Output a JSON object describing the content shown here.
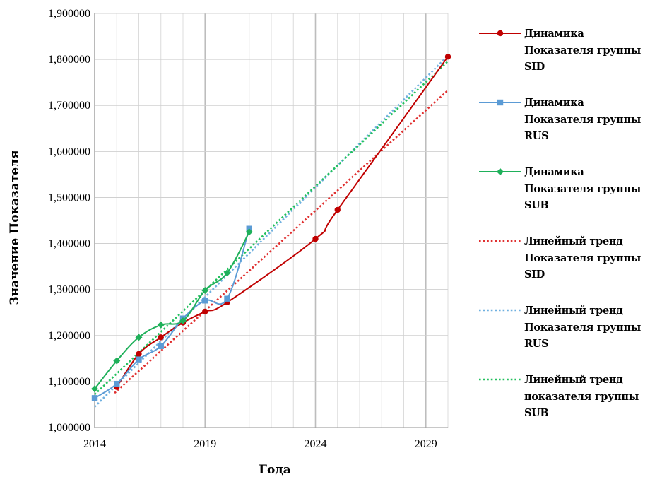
{
  "chart_data": {
    "type": "line",
    "xlabel": "Года",
    "ylabel": "Значение Показателя",
    "xlim": [
      2014,
      2030
    ],
    "ylim": [
      1000000,
      1900000
    ],
    "x_ticks": [
      2014,
      2019,
      2024,
      2029
    ],
    "y_ticks": [
      {
        "value": 1000000,
        "label": "1,000000"
      },
      {
        "value": 1100000,
        "label": "1,100000"
      },
      {
        "value": 1200000,
        "label": "1,200000"
      },
      {
        "value": 1300000,
        "label": "1,300000"
      },
      {
        "value": 1400000,
        "label": "1,400000"
      },
      {
        "value": 1500000,
        "label": "1,500000"
      },
      {
        "value": 1600000,
        "label": "1,600000"
      },
      {
        "value": 1700000,
        "label": "1,700000"
      },
      {
        "value": 1800000,
        "label": "1,800000"
      },
      {
        "value": 1900000,
        "label": "1,900000"
      }
    ],
    "grid": true,
    "legend_position": "right",
    "series": [
      {
        "name": "Динамика Показателя группы SID",
        "legend_lines": [
          "Динамика",
          "Показателя группы",
          "SID"
        ],
        "color": "#c00000",
        "marker": "circle",
        "style": "solid",
        "x": [
          2015,
          2016,
          2017,
          2018,
          2019,
          2020,
          2024,
          2025,
          2030
        ],
        "y": [
          1088000,
          1160000,
          1196000,
          1228000,
          1252000,
          1272000,
          1410000,
          1473000,
          1806000
        ]
      },
      {
        "name": "Динамика Показателя группы RUS",
        "legend_lines": [
          "Динамика",
          "Показателя группы",
          "RUS"
        ],
        "color": "#5b9bd5",
        "marker": "square",
        "style": "solid",
        "x": [
          2014,
          2015,
          2016,
          2017,
          2018,
          2019,
          2020,
          2021
        ],
        "y": [
          1064000,
          1095000,
          1148000,
          1177000,
          1237000,
          1276000,
          1280000,
          1432000
        ]
      },
      {
        "name": "Динамика Показателя группы SUB",
        "legend_lines": [
          "Динамика",
          "Показателя группы",
          "SUB"
        ],
        "color": "#1fb05a",
        "marker": "diamond",
        "style": "solid",
        "x": [
          2014,
          2015,
          2016,
          2017,
          2018,
          2019,
          2020,
          2021
        ],
        "y": [
          1084000,
          1145000,
          1196000,
          1223000,
          1232000,
          1298000,
          1336000,
          1425000
        ]
      },
      {
        "name": "Линейный тренд Показателя группы SID",
        "legend_lines": [
          "Линейный тренд",
          "Показателя группы",
          "SID"
        ],
        "color": "#e03030",
        "style": "dotted",
        "x": [
          2014.9,
          2030
        ],
        "y": [
          1075000,
          1733000
        ]
      },
      {
        "name": "Линейный тренд Показателя группы RUS",
        "legend_lines": [
          "Линейный тренд",
          "Показателя группы",
          "RUS"
        ],
        "color": "#6fb0e0",
        "style": "dotted",
        "x": [
          2014,
          2030
        ],
        "y": [
          1045000,
          1808000
        ]
      },
      {
        "name": "Линейный тренд показателя группы SUB",
        "legend_lines": [
          "Линейный тренд",
          "показателя группы",
          "SUB"
        ],
        "color": "#22c05e",
        "style": "dotted",
        "x": [
          2014,
          2030
        ],
        "y": [
          1072000,
          1796000
        ]
      }
    ]
  }
}
